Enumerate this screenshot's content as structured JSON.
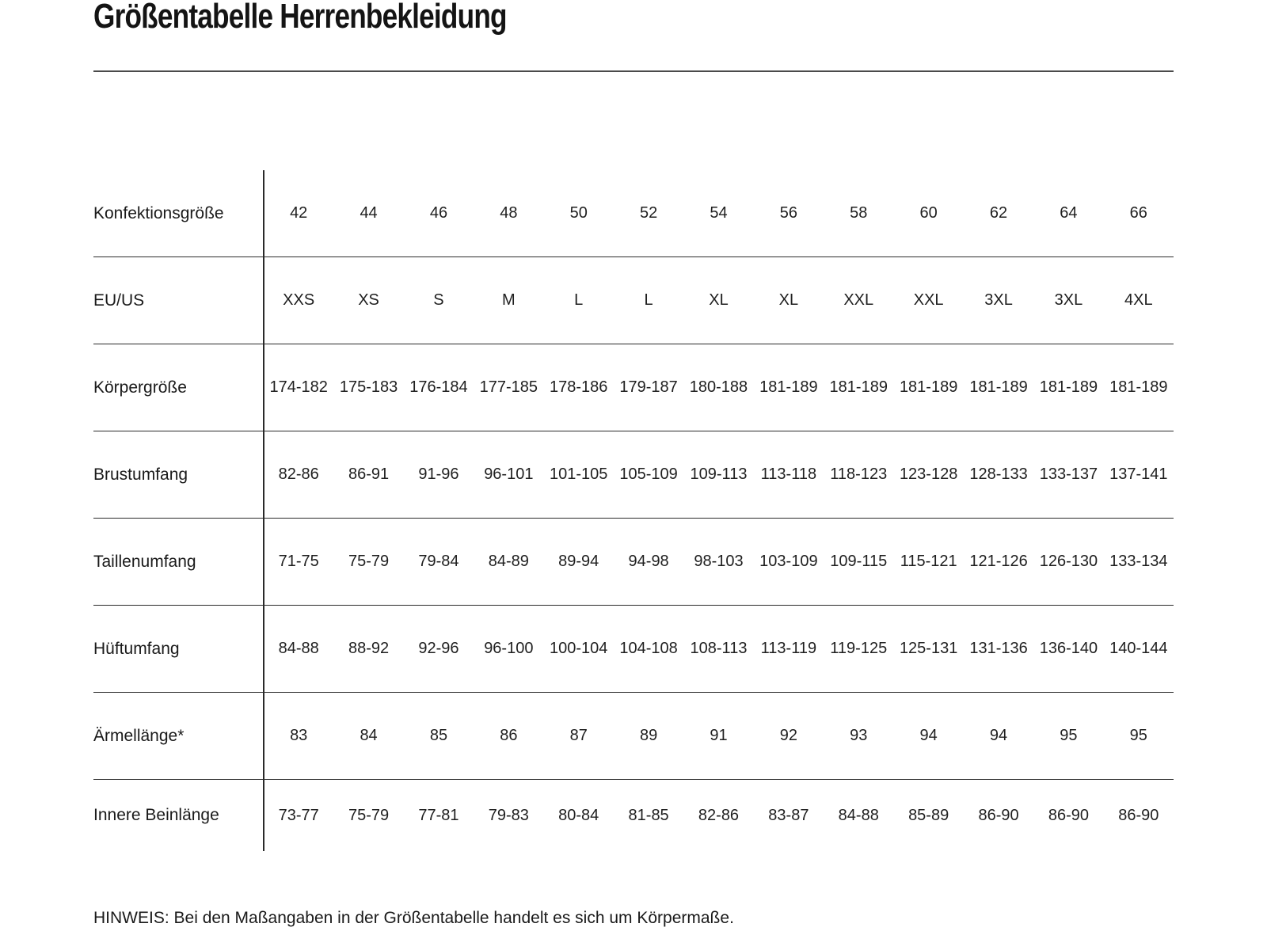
{
  "page": {
    "title": "Größentabelle Herrenbekleidung",
    "note": "HINWEIS: Bei den Maßangaben in der Größentabelle handelt es sich um Körpermaße."
  },
  "colors": {
    "background": "#ffffff",
    "text": "#1a1a1a",
    "rule": "#2a2a2a"
  },
  "table": {
    "rows": [
      {
        "label": "Konfektionsgröße",
        "values": [
          "42",
          "44",
          "46",
          "48",
          "50",
          "52",
          "54",
          "56",
          "58",
          "60",
          "62",
          "64",
          "66"
        ]
      },
      {
        "label": "EU/US",
        "values": [
          "XXS",
          "XS",
          "S",
          "M",
          "L",
          "L",
          "XL",
          "XL",
          "XXL",
          "XXL",
          "3XL",
          "3XL",
          "4XL"
        ]
      },
      {
        "label": "Körpergröße",
        "values": [
          "174-182",
          "175-183",
          "176-184",
          "177-185",
          "178-186",
          "179-187",
          "180-188",
          "181-189",
          "181-189",
          "181-189",
          "181-189",
          "181-189",
          "181-189"
        ]
      },
      {
        "label": "Brustumfang",
        "values": [
          "82-86",
          "86-91",
          "91-96",
          "96-101",
          "101-105",
          "105-109",
          "109-113",
          "113-118",
          "118-123",
          "123-128",
          "128-133",
          "133-137",
          "137-141"
        ]
      },
      {
        "label": "Taillenumfang",
        "values": [
          "71-75",
          "75-79",
          "79-84",
          "84-89",
          "89-94",
          "94-98",
          "98-103",
          "103-109",
          "109-115",
          "115-121",
          "121-126",
          "126-130",
          "133-134"
        ]
      },
      {
        "label": "Hüftumfang",
        "values": [
          "84-88",
          "88-92",
          "92-96",
          "96-100",
          "100-104",
          "104-108",
          "108-113",
          "113-119",
          "119-125",
          "125-131",
          "131-136",
          "136-140",
          "140-144"
        ]
      },
      {
        "label": "Ärmellänge*",
        "values": [
          "83",
          "84",
          "85",
          "86",
          "87",
          "89",
          "91",
          "92",
          "93",
          "94",
          "94",
          "95",
          "95"
        ]
      },
      {
        "label": "Innere Beinlänge",
        "values": [
          "73-77",
          "75-79",
          "77-81",
          "79-83",
          "80-84",
          "81-85",
          "82-86",
          "83-87",
          "84-88",
          "85-89",
          "86-90",
          "86-90",
          "86-90"
        ]
      }
    ]
  }
}
